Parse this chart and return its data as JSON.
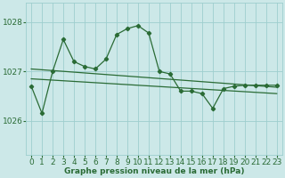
{
  "title": "Graphe pression niveau de la mer (hPa)",
  "bg_color": "#cce8e8",
  "grid_color": "#9ecece",
  "line_color": "#2a6b35",
  "marker_color": "#2a6b35",
  "xlim": [
    -0.5,
    23.5
  ],
  "ylim": [
    1025.3,
    1028.4
  ],
  "yticks": [
    1026,
    1027,
    1028
  ],
  "xticks": [
    0,
    1,
    2,
    3,
    4,
    5,
    6,
    7,
    8,
    9,
    10,
    11,
    12,
    13,
    14,
    15,
    16,
    17,
    18,
    19,
    20,
    21,
    22,
    23
  ],
  "series1_x": [
    0,
    1,
    2,
    3,
    4,
    5,
    6,
    7,
    8,
    9,
    10,
    11,
    12,
    13,
    14,
    15,
    16,
    17,
    18,
    19,
    20,
    21,
    22,
    23
  ],
  "series1_y": [
    1026.7,
    1026.15,
    1027.0,
    1027.65,
    1027.2,
    1027.1,
    1027.05,
    1027.25,
    1027.75,
    1027.87,
    1027.93,
    1027.78,
    1027.0,
    1026.95,
    1026.6,
    1026.6,
    1026.55,
    1026.25,
    1026.65,
    1026.7,
    1026.72,
    1026.72,
    1026.72,
    1026.72
  ],
  "series2_x": [
    0,
    23
  ],
  "series2_y": [
    1027.05,
    1026.68
  ],
  "series3_x": [
    0,
    23
  ],
  "series3_y": [
    1026.85,
    1026.55
  ],
  "xlabel_fontsize": 6.5,
  "ylabel_fontsize": 6.5,
  "title_fontsize": 6.5
}
